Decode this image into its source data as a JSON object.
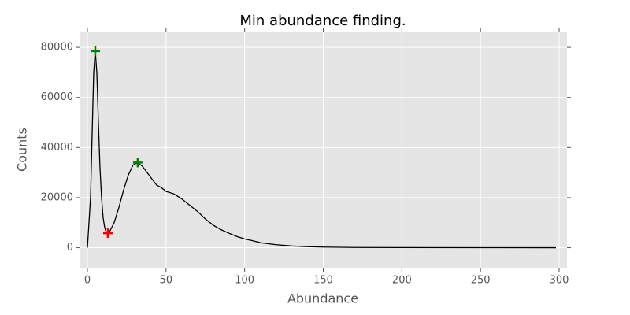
{
  "chart_data": {
    "type": "line",
    "title": "Min abundance finding.",
    "xlabel": "Abundance",
    "ylabel": "Counts",
    "xlim": [
      -5,
      305
    ],
    "ylim": [
      -8000,
      86000
    ],
    "xticks": [
      0,
      50,
      100,
      150,
      200,
      250,
      300
    ],
    "yticks": [
      0,
      20000,
      40000,
      60000,
      80000
    ],
    "grid": true,
    "background": "#e5e5e5",
    "series": [
      {
        "style": "line",
        "color": "#000000",
        "x": [
          0,
          2,
          3,
          4,
          5,
          6,
          7,
          8,
          9,
          10,
          11,
          12,
          13,
          14,
          15,
          17,
          20,
          23,
          26,
          29,
          32,
          35,
          38,
          41,
          44,
          47,
          50,
          55,
          60,
          65,
          70,
          75,
          80,
          85,
          90,
          95,
          100,
          105,
          110,
          120,
          130,
          140,
          150,
          170,
          200,
          250,
          298
        ],
        "values": [
          0,
          20000,
          45000,
          70000,
          78500,
          70000,
          50000,
          32000,
          20000,
          12000,
          8000,
          6200,
          5800,
          6200,
          7500,
          10000,
          16000,
          23000,
          29000,
          33000,
          34000,
          32500,
          30000,
          27500,
          25000,
          24000,
          22500,
          21500,
          19500,
          17000,
          14500,
          11500,
          9000,
          7200,
          5800,
          4500,
          3500,
          2800,
          2000,
          1200,
          700,
          400,
          250,
          100,
          50,
          20,
          0
        ]
      },
      {
        "style": "plus",
        "color": "#008000",
        "x": [
          5,
          32
        ],
        "values": [
          78500,
          34000
        ]
      },
      {
        "style": "plus",
        "color": "#ff0000",
        "x": [
          13
        ],
        "values": [
          5800
        ]
      }
    ]
  }
}
